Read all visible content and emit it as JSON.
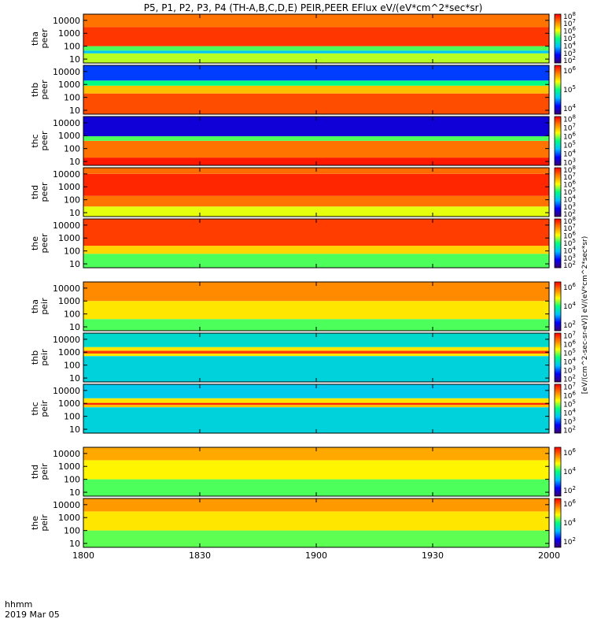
{
  "chart_data": {
    "type": "heatmap",
    "title": "P5, P1, P2, P3, P4 (TH-A,B,C,D,E) PEIR,PEER EFlux eV/(eV*cm^2*sec*sr)",
    "x_ticks": [
      "1800",
      "1830",
      "1900",
      "1930",
      "2000"
    ],
    "x_tick_minutes": [
      0,
      30,
      60,
      90,
      120
    ],
    "xlim_minutes": [
      0,
      120
    ],
    "x_units_label": "hhmm",
    "date_label": "2019 Mar 05",
    "y_ticks": [
      "10000",
      "1000",
      "100",
      "10"
    ],
    "y_scale": "log",
    "ylim": [
      5,
      30000
    ],
    "colorbar_label": "[eV/(cm^2-sec-sr-eV)] eV/(eV*cm^2*sec*sr)",
    "colorscale": [
      "#3a0070",
      "#0000ff",
      "#00c0ff",
      "#00ff80",
      "#ffff00",
      "#ff8000",
      "#ff0000"
    ],
    "panels": [
      {
        "label": [
          "tha",
          "peer"
        ],
        "cbar_ticks": [
          {
            "b": "10",
            "e": "2"
          },
          {
            "b": "10",
            "e": "3"
          },
          {
            "b": "10",
            "e": "4"
          },
          {
            "b": "10",
            "e": "5"
          },
          {
            "b": "10",
            "e": "6"
          },
          {
            "b": "10",
            "e": "7"
          },
          {
            "b": "10",
            "e": "8"
          }
        ],
        "bands": [
          {
            "lo": 5,
            "hi": 28,
            "level": 0.62
          },
          {
            "lo": 28,
            "hi": 45,
            "level": 0.35
          },
          {
            "lo": 45,
            "hi": 100,
            "level": 0.55
          },
          {
            "lo": 100,
            "hi": 3000,
            "level": 0.93
          },
          {
            "lo": 3000,
            "hi": 30000,
            "level": 0.85
          }
        ]
      },
      {
        "label": [
          "thb",
          "peer"
        ],
        "cbar_ticks": [
          {
            "b": "10",
            "e": "4"
          },
          {
            "b": "10",
            "e": "5"
          },
          {
            "b": "10",
            "e": "6"
          }
        ],
        "bands": [
          {
            "lo": 5,
            "hi": 200,
            "level": 0.9
          },
          {
            "lo": 200,
            "hi": 800,
            "level": 0.75
          },
          {
            "lo": 800,
            "hi": 2000,
            "level": 0.5
          },
          {
            "lo": 2000,
            "hi": 30000,
            "level": 0.22
          }
        ]
      },
      {
        "label": [
          "thc",
          "peer"
        ],
        "cbar_ticks": [
          {
            "b": "10",
            "e": "3"
          },
          {
            "b": "10",
            "e": "4"
          },
          {
            "b": "10",
            "e": "5"
          },
          {
            "b": "10",
            "e": "6"
          },
          {
            "b": "10",
            "e": "7"
          },
          {
            "b": "10",
            "e": "8"
          }
        ],
        "bands": [
          {
            "lo": 5,
            "hi": 20,
            "level": 0.97
          },
          {
            "lo": 20,
            "hi": 400,
            "level": 0.85
          },
          {
            "lo": 400,
            "hi": 900,
            "level": 0.55
          },
          {
            "lo": 900,
            "hi": 30000,
            "level": 0.12
          }
        ]
      },
      {
        "label": [
          "thd",
          "peer"
        ],
        "cbar_ticks": [
          {
            "b": "10",
            "e": "2"
          },
          {
            "b": "10",
            "e": "3"
          },
          {
            "b": "10",
            "e": "4"
          },
          {
            "b": "10",
            "e": "5"
          },
          {
            "b": "10",
            "e": "6"
          },
          {
            "b": "10",
            "e": "7"
          },
          {
            "b": "10",
            "e": "8"
          }
        ],
        "bands": [
          {
            "lo": 5,
            "hi": 30,
            "level": 0.65
          },
          {
            "lo": 30,
            "hi": 200,
            "level": 0.85
          },
          {
            "lo": 200,
            "hi": 10000,
            "level": 0.95
          },
          {
            "lo": 10000,
            "hi": 30000,
            "level": 0.86
          }
        ]
      },
      {
        "label": [
          "the",
          "peer"
        ],
        "cbar_ticks": [
          {
            "b": "10",
            "e": "2"
          },
          {
            "b": "10",
            "e": "3"
          },
          {
            "b": "10",
            "e": "4"
          },
          {
            "b": "10",
            "e": "5"
          },
          {
            "b": "10",
            "e": "6"
          },
          {
            "b": "10",
            "e": "7"
          },
          {
            "b": "10",
            "e": "8"
          }
        ],
        "bands": [
          {
            "lo": 5,
            "hi": 60,
            "level": 0.55
          },
          {
            "lo": 60,
            "hi": 250,
            "level": 0.72
          },
          {
            "lo": 250,
            "hi": 30000,
            "level": 0.92
          }
        ]
      },
      {
        "label": [
          "tha",
          "peir"
        ],
        "cbar_ticks": [
          {
            "b": "10",
            "e": "2"
          },
          {
            "b": "10",
            "e": "4"
          },
          {
            "b": "10",
            "e": "6"
          }
        ],
        "bands": [
          {
            "lo": 5,
            "hi": 40,
            "level": 0.55
          },
          {
            "lo": 40,
            "hi": 1000,
            "level": 0.7
          },
          {
            "lo": 1000,
            "hi": 30000,
            "level": 0.82
          }
        ]
      },
      {
        "label": [
          "thb",
          "peir"
        ],
        "cbar_ticks": [
          {
            "b": "10",
            "e": "2"
          },
          {
            "b": "10",
            "e": "3"
          },
          {
            "b": "10",
            "e": "4"
          },
          {
            "b": "10",
            "e": "5"
          },
          {
            "b": "10",
            "e": "6"
          },
          {
            "b": "10",
            "e": "7"
          }
        ],
        "bands": [
          {
            "lo": 5,
            "hi": 500,
            "level": 0.38
          },
          {
            "lo": 500,
            "hi": 800,
            "level": 0.7
          },
          {
            "lo": 800,
            "hi": 1300,
            "level": 0.92
          },
          {
            "lo": 1300,
            "hi": 2500,
            "level": 0.7
          },
          {
            "lo": 2500,
            "hi": 30000,
            "level": 0.4
          }
        ]
      },
      {
        "label": [
          "thc",
          "peir"
        ],
        "cbar_ticks": [
          {
            "b": "10",
            "e": "2"
          },
          {
            "b": "10",
            "e": "3"
          },
          {
            "b": "10",
            "e": "4"
          },
          {
            "b": "10",
            "e": "5"
          },
          {
            "b": "10",
            "e": "6"
          },
          {
            "b": "10",
            "e": "7"
          }
        ],
        "bands": [
          {
            "lo": 5,
            "hi": 500,
            "level": 0.38
          },
          {
            "lo": 500,
            "hi": 800,
            "level": 0.75
          },
          {
            "lo": 800,
            "hi": 1100,
            "level": 0.96
          },
          {
            "lo": 1100,
            "hi": 2500,
            "level": 0.7
          },
          {
            "lo": 2500,
            "hi": 30000,
            "level": 0.36
          }
        ]
      },
      {
        "label": [
          "thd",
          "peir"
        ],
        "cbar_ticks": [
          {
            "b": "10",
            "e": "2"
          },
          {
            "b": "10",
            "e": "4"
          },
          {
            "b": "10",
            "e": "6"
          }
        ],
        "bands": [
          {
            "lo": 5,
            "hi": 100,
            "level": 0.55
          },
          {
            "lo": 100,
            "hi": 3000,
            "level": 0.68
          },
          {
            "lo": 3000,
            "hi": 30000,
            "level": 0.78
          }
        ]
      },
      {
        "label": [
          "the",
          "peir"
        ],
        "cbar_ticks": [
          {
            "b": "10",
            "e": "2"
          },
          {
            "b": "10",
            "e": "4"
          },
          {
            "b": "10",
            "e": "6"
          }
        ],
        "bands": [
          {
            "lo": 5,
            "hi": 100,
            "level": 0.56
          },
          {
            "lo": 100,
            "hi": 3000,
            "level": 0.7
          },
          {
            "lo": 3000,
            "hi": 30000,
            "level": 0.8
          }
        ]
      }
    ]
  }
}
